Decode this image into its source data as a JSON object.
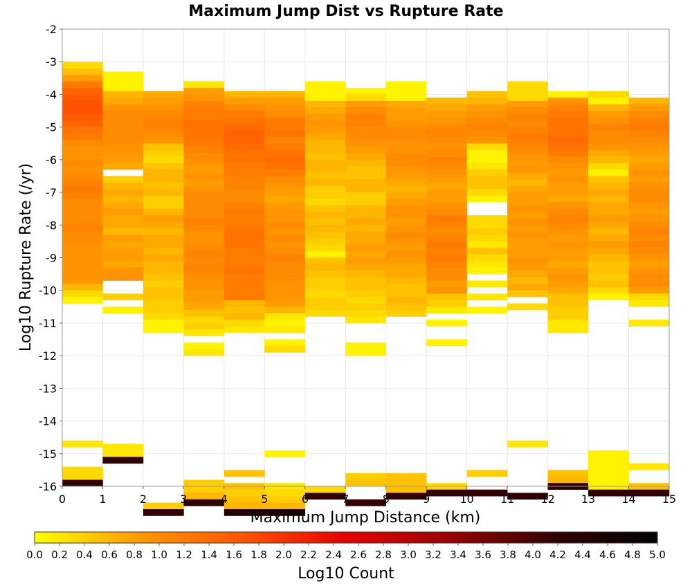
{
  "chart_data": {
    "type": "heatmap",
    "title": "Maximum Jump Dist vs Rupture Rate",
    "xlabel": "Maximum Jump Distance (km)",
    "ylabel": "Log10 Rupture Rate (/yr)",
    "xlim": [
      0,
      15
    ],
    "ylim": [
      -16,
      -2
    ],
    "x_ticks": [
      "0",
      "1",
      "2",
      "3",
      "4",
      "5",
      "6",
      "7",
      "8",
      "9",
      "10",
      "11",
      "12",
      "13",
      "14",
      "15"
    ],
    "y_ticks": [
      "-2",
      "-3",
      "-4",
      "-5",
      "-6",
      "-7",
      "-8",
      "-9",
      "-10",
      "-11",
      "-12",
      "-13",
      "-14",
      "-15",
      "-16"
    ],
    "x_bin_width": 1,
    "y_bin_height": 0.2,
    "grid": true,
    "colorbar": {
      "label": "Log10 Count",
      "min": 0.0,
      "max": 5.0,
      "colors": [
        "#ffff00",
        "#ff9900",
        "#ff5500",
        "#e60000",
        "#990000",
        "#330000",
        "#000000"
      ],
      "ticks": [
        "0.0",
        "0.2",
        "0.4",
        "0.6",
        "0.8",
        "1.0",
        "1.2",
        "1.4",
        "1.6",
        "1.8",
        "2.0",
        "2.2",
        "2.4",
        "2.6",
        "2.8",
        "3.0",
        "3.2",
        "3.4",
        "3.6",
        "3.8",
        "4.0",
        "4.2",
        "4.4",
        "4.6",
        "4.8",
        "5.0"
      ]
    },
    "columns": [
      {
        "x": 0,
        "top": -3.0,
        "values": [
          0.3,
          0.5,
          0.8,
          1.2,
          1.5,
          1.6,
          1.7,
          1.7,
          1.6,
          1.5,
          1.3,
          1.2,
          1.0,
          0.9,
          0.9,
          1.0,
          0.9,
          1.0,
          1.1,
          1.2,
          1.1,
          1.0,
          1.0,
          1.0,
          1.0,
          1.1,
          1.0,
          1.0,
          0.9,
          0.9,
          0.9,
          0.9,
          0.9,
          0.9,
          0.6,
          0.3,
          0.1,
          null,
          null,
          null,
          null,
          null,
          null,
          null,
          null,
          null,
          null,
          null,
          null,
          null,
          null,
          null,
          null,
          null,
          null,
          null,
          null,
          null,
          0.2,
          null,
          null,
          null,
          0.3,
          0.3,
          4.2
        ]
      },
      {
        "x": 1,
        "top": -3.3,
        "values": [
          0.1,
          0.1,
          0.1,
          0.6,
          0.7,
          0.9,
          1.0,
          1.0,
          1.0,
          1.0,
          1.0,
          0.9,
          0.9,
          0.8,
          0.7,
          null,
          0.4,
          0.6,
          0.7,
          0.6,
          0.7,
          0.8,
          0.7,
          0.7,
          0.6,
          0.8,
          0.7,
          0.8,
          0.8,
          0.7,
          0.9,
          0.9,
          null,
          null,
          0.4,
          null,
          0.1,
          null,
          null,
          null,
          null,
          null,
          null,
          null,
          null,
          null,
          null,
          null,
          null,
          null,
          null,
          null,
          null,
          null,
          null,
          null,
          null,
          0.2,
          0.2,
          4.2
        ]
      },
      {
        "x": 2,
        "top": -3.9,
        "values": [
          0.7,
          0.8,
          0.9,
          1.0,
          1.1,
          1.1,
          1.0,
          0.9,
          0.5,
          0.4,
          0.3,
          0.5,
          0.6,
          0.6,
          0.5,
          0.6,
          0.4,
          0.4,
          0.6,
          0.8,
          0.7,
          0.6,
          0.7,
          0.7,
          0.6,
          0.7,
          0.6,
          0.6,
          0.5,
          0.4,
          0.5,
          0.5,
          0.4,
          0.4,
          0.3,
          0.1,
          0.1,
          null,
          null,
          null,
          null,
          null,
          null,
          null,
          null,
          null,
          null,
          null,
          null,
          null,
          null,
          null,
          null,
          null,
          null,
          null,
          null,
          null,
          null,
          null,
          null,
          null,
          null,
          0.4,
          4.2
        ]
      },
      {
        "x": 3,
        "top": -3.6,
        "values": [
          0.2,
          0.8,
          0.9,
          1.1,
          1.2,
          1.2,
          1.3,
          1.3,
          1.3,
          1.2,
          1.1,
          1.0,
          0.9,
          0.8,
          0.9,
          0.8,
          0.9,
          1.0,
          1.0,
          1.0,
          1.0,
          1.1,
          1.0,
          0.9,
          0.9,
          1.0,
          1.1,
          1.0,
          1.1,
          1.0,
          0.9,
          0.9,
          0.8,
          0.8,
          0.7,
          0.5,
          0.3,
          0.4,
          0.2,
          null,
          0.1,
          0.2,
          null,
          null,
          null,
          null,
          null,
          null,
          null,
          null,
          null,
          null,
          null,
          null,
          null,
          null,
          null,
          null,
          null,
          null,
          null,
          0.4,
          0.4,
          0.6,
          4.2
        ]
      },
      {
        "x": 4,
        "top": -3.9,
        "values": [
          0.6,
          0.8,
          1.0,
          1.2,
          1.3,
          1.4,
          1.5,
          1.5,
          1.4,
          1.3,
          1.3,
          1.2,
          1.2,
          1.1,
          1.1,
          1.0,
          1.0,
          1.1,
          1.2,
          1.2,
          1.2,
          1.3,
          1.3,
          1.3,
          1.2,
          1.2,
          1.2,
          1.3,
          1.2,
          1.2,
          1.2,
          1.2,
          0.6,
          0.5,
          0.6,
          0.3,
          0.2,
          null,
          null,
          null,
          null,
          null,
          null,
          null,
          null,
          null,
          null,
          null,
          null,
          null,
          null,
          null,
          null,
          null,
          null,
          null,
          null,
          null,
          0.5,
          null,
          0.5,
          0.4,
          0.5,
          0.6,
          4.4
        ]
      },
      {
        "x": 5,
        "top": -3.9,
        "values": [
          0.6,
          0.8,
          0.9,
          1.0,
          1.2,
          1.2,
          1.3,
          1.1,
          1.2,
          1.3,
          1.4,
          1.3,
          1.2,
          1.0,
          0.9,
          0.8,
          0.7,
          0.8,
          0.9,
          0.9,
          1.0,
          0.9,
          1.0,
          0.9,
          1.0,
          1.1,
          1.0,
          1.0,
          1.0,
          0.9,
          0.9,
          0.9,
          0.8,
          0.6,
          0.2,
          0.1,
          0.2,
          null,
          0.1,
          0.3,
          null,
          null,
          null,
          null,
          null,
          null,
          null,
          null,
          null,
          null,
          null,
          null,
          null,
          null,
          null,
          0.1,
          null,
          null,
          null,
          null,
          0.2,
          0.3,
          0.4,
          0.6,
          4.6
        ]
      },
      {
        "x": 6,
        "top": -3.6,
        "values": [
          0.1,
          0.1,
          0.1,
          0.6,
          0.7,
          0.8,
          0.9,
          0.8,
          0.7,
          0.6,
          0.6,
          0.5,
          0.6,
          0.6,
          0.5,
          0.6,
          0.4,
          0.4,
          0.3,
          0.5,
          0.6,
          0.5,
          0.6,
          0.5,
          0.4,
          0.3,
          0.1,
          0.5,
          0.6,
          0.5,
          0.4,
          0.4,
          0.3,
          0.4,
          0.4,
          0.3,
          null,
          null,
          null,
          null,
          null,
          null,
          null,
          null,
          null,
          null,
          null,
          null,
          null,
          null,
          null,
          null,
          null,
          null,
          null,
          null,
          null,
          null,
          null,
          null,
          null,
          null,
          0.3,
          4.2
        ]
      },
      {
        "x": 7,
        "top": -3.8,
        "values": [
          0.1,
          0.3,
          0.8,
          1.0,
          1.1,
          1.1,
          1.0,
          1.0,
          0.9,
          0.8,
          0.7,
          0.6,
          0.5,
          0.5,
          0.6,
          0.6,
          0.4,
          0.4,
          0.6,
          0.6,
          0.7,
          0.6,
          0.7,
          0.7,
          0.8,
          0.7,
          0.8,
          0.7,
          0.6,
          0.5,
          0.5,
          0.4,
          0.3,
          0.4,
          0.3,
          0.2,
          null,
          null,
          null,
          0.1,
          0.1,
          null,
          null,
          null,
          null,
          null,
          null,
          null,
          null,
          null,
          null,
          null,
          null,
          null,
          null,
          null,
          null,
          null,
          null,
          0.4,
          0.5,
          null,
          null,
          4.2
        ]
      },
      {
        "x": 8,
        "top": -3.6,
        "values": [
          0.1,
          0.1,
          0.1,
          0.7,
          0.8,
          0.8,
          0.9,
          1.0,
          1.0,
          0.9,
          0.9,
          1.0,
          1.0,
          0.9,
          0.8,
          0.7,
          0.6,
          0.7,
          0.8,
          0.9,
          0.9,
          0.8,
          0.9,
          1.0,
          0.9,
          0.8,
          0.9,
          0.8,
          0.7,
          0.7,
          0.6,
          0.5,
          0.5,
          0.6,
          0.5,
          0.4,
          null,
          null,
          null,
          null,
          null,
          null,
          null,
          null,
          null,
          null,
          null,
          null,
          null,
          null,
          null,
          null,
          null,
          null,
          null,
          null,
          null,
          null,
          null,
          null,
          0.5,
          0.5,
          0.5,
          4.2
        ]
      },
      {
        "x": 9,
        "top": -4.1,
        "values": [
          0.6,
          0.7,
          0.8,
          0.9,
          1.0,
          1.1,
          1.0,
          0.9,
          1.0,
          1.1,
          1.0,
          0.9,
          0.8,
          0.7,
          0.8,
          0.8,
          0.9,
          1.0,
          1.2,
          1.1,
          1.0,
          1.1,
          1.2,
          1.1,
          1.2,
          1.1,
          1.0,
          1.0,
          0.8,
          0.9,
          0.5,
          0.4,
          0.2,
          null,
          0.1,
          null,
          null,
          0.1,
          null,
          null,
          null,
          null,
          null,
          null,
          null,
          null,
          null,
          null,
          null,
          null,
          null,
          null,
          null,
          null,
          null,
          null,
          null,
          null,
          null,
          0.3,
          4.2
        ]
      },
      {
        "x": 10,
        "top": -3.9,
        "values": [
          0.5,
          0.6,
          0.8,
          0.9,
          1.0,
          1.1,
          1.0,
          0.9,
          0.3,
          0.1,
          0.1,
          0.2,
          0.4,
          0.5,
          0.5,
          0.3,
          0.1,
          null,
          null,
          0.3,
          0.3,
          0.4,
          0.3,
          0.2,
          0.5,
          0.3,
          0.2,
          0.1,
          null,
          0.2,
          null,
          0.2,
          null,
          0.1,
          null,
          null,
          null,
          null,
          null,
          null,
          null,
          null,
          null,
          null,
          null,
          null,
          null,
          null,
          null,
          null,
          null,
          null,
          null,
          null,
          null,
          null,
          null,
          null,
          0.4,
          null,
          null,
          4.2
        ]
      },
      {
        "x": 11,
        "top": -3.6,
        "values": [
          0.3,
          0.3,
          0.3,
          0.8,
          1.0,
          1.1,
          1.0,
          1.1,
          1.2,
          1.1,
          1.0,
          0.9,
          0.8,
          0.9,
          0.7,
          0.6,
          0.7,
          0.8,
          0.8,
          0.9,
          0.8,
          0.9,
          0.8,
          0.9,
          0.8,
          0.8,
          0.8,
          0.9,
          0.8,
          0.7,
          0.6,
          0.7,
          0.5,
          null,
          0.3,
          null,
          null,
          null,
          null,
          null,
          null,
          null,
          null,
          null,
          null,
          null,
          null,
          null,
          null,
          null,
          null,
          null,
          null,
          null,
          null,
          0.2,
          null,
          null,
          null,
          null,
          null,
          null,
          null,
          4.2
        ]
      },
      {
        "x": 12,
        "top": -3.9,
        "values": [
          0.1,
          0.9,
          1.1,
          1.2,
          1.3,
          1.3,
          1.3,
          1.4,
          1.3,
          1.2,
          1.0,
          0.9,
          0.8,
          0.9,
          0.8,
          0.8,
          0.7,
          0.9,
          1.0,
          1.1,
          1.0,
          0.9,
          0.8,
          0.9,
          0.8,
          0.8,
          0.7,
          0.8,
          0.9,
          0.8,
          0.7,
          0.5,
          0.5,
          0.4,
          0.4,
          0.2,
          0.2,
          null,
          null,
          null,
          null,
          null,
          null,
          null,
          null,
          null,
          null,
          null,
          null,
          null,
          null,
          null,
          null,
          null,
          null,
          null,
          null,
          null,
          0.5,
          0.6,
          4.2
        ]
      },
      {
        "x": 13,
        "top": -3.9,
        "values": [
          0.3,
          0.1,
          0.6,
          0.8,
          0.9,
          1.1,
          1.0,
          1.0,
          0.9,
          0.7,
          0.6,
          0.3,
          0.1,
          0.5,
          0.6,
          0.7,
          0.6,
          0.7,
          0.7,
          0.8,
          0.7,
          0.6,
          0.7,
          0.8,
          0.7,
          0.6,
          0.5,
          0.5,
          0.4,
          0.5,
          0.3,
          0.1,
          null,
          null,
          null,
          null,
          null,
          null,
          null,
          null,
          null,
          null,
          null,
          null,
          null,
          null,
          null,
          null,
          null,
          null,
          null,
          null,
          null,
          null,
          null,
          0.1,
          0.1,
          0.1,
          0.1,
          0.1,
          0.1,
          4.2
        ]
      },
      {
        "x": 14,
        "top": -4.1,
        "values": [
          0.6,
          0.8,
          1.0,
          1.1,
          1.2,
          1.1,
          1.0,
          0.9,
          0.8,
          0.7,
          0.8,
          0.9,
          0.8,
          0.9,
          1.0,
          1.0,
          0.9,
          0.8,
          0.9,
          1.0,
          1.1,
          1.0,
          1.1,
          1.0,
          0.9,
          0.8,
          0.9,
          1.0,
          1.0,
          0.8,
          0.3,
          0.2,
          null,
          null,
          0.2,
          null,
          null,
          null,
          null,
          null,
          null,
          null,
          null,
          null,
          null,
          null,
          null,
          null,
          null,
          null,
          null,
          null,
          null,
          null,
          null,
          null,
          0.2,
          null,
          null,
          0.5,
          4.2
        ]
      }
    ]
  }
}
